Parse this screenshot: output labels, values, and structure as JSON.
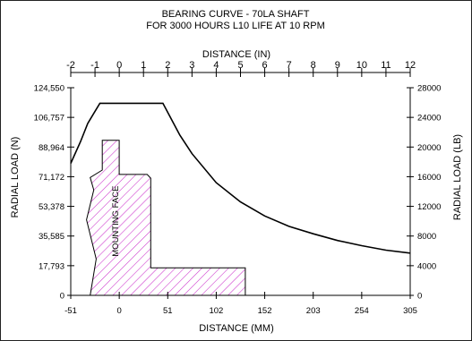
{
  "chart_data": {
    "type": "line",
    "title": [
      "BEARING CURVE - 70LA SHAFT",
      "FOR 3000 HOURS L10 LIFE AT 10 RPM"
    ],
    "top_xlabel": "DISTANCE (IN)",
    "bottom_xlabel": "DISTANCE (MM)",
    "left_ylabel": "RADIAL LOAD (N)",
    "right_ylabel": "RADIAL LOAD (LB)",
    "annotation": "MOUNTING FACE",
    "x_in_range": [
      -2,
      12
    ],
    "y_lb_range": [
      0,
      28000
    ],
    "top_ticks": [
      "-2",
      "-1",
      "0",
      "1",
      "2",
      "3",
      "4",
      "5",
      "6",
      "7",
      "8",
      "9",
      "10",
      "11",
      "12"
    ],
    "bottom_ticks": [
      {
        "x": -2,
        "label": "-51"
      },
      {
        "x": 0,
        "label": "0"
      },
      {
        "x": 2,
        "label": "51"
      },
      {
        "x": 4,
        "label": "102"
      },
      {
        "x": 6,
        "label": "152"
      },
      {
        "x": 8,
        "label": "203"
      },
      {
        "x": 10,
        "label": "254"
      },
      {
        "x": 12,
        "label": "305"
      }
    ],
    "left_ticks": [
      {
        "y": 0,
        "label": "0"
      },
      {
        "y": 4000,
        "label": "17,793"
      },
      {
        "y": 8000,
        "label": "35,585"
      },
      {
        "y": 12000,
        "label": "53,378"
      },
      {
        "y": 16000,
        "label": "71,172"
      },
      {
        "y": 20000,
        "label": "88,964"
      },
      {
        "y": 24000,
        "label": "106,757"
      },
      {
        "y": 28000,
        "label": "124,550"
      }
    ],
    "right_ticks": [
      {
        "y": 0,
        "label": "0"
      },
      {
        "y": 4000,
        "label": "4000"
      },
      {
        "y": 8000,
        "label": "8000"
      },
      {
        "y": 12000,
        "label": "12000"
      },
      {
        "y": 16000,
        "label": "16000"
      },
      {
        "y": 20000,
        "label": "20000"
      },
      {
        "y": 24000,
        "label": "24000"
      },
      {
        "y": 28000,
        "label": "28000"
      }
    ],
    "grid": false,
    "series": [
      {
        "values": [
          [
            -2,
            17800
          ],
          [
            -1.6,
            20700
          ],
          [
            -1.3,
            23200
          ],
          [
            -0.8,
            25900
          ],
          [
            1.8,
            25900
          ],
          [
            2.5,
            21600
          ],
          [
            3,
            19100
          ],
          [
            4,
            15200
          ],
          [
            5,
            12600
          ],
          [
            6,
            10700
          ],
          [
            7,
            9300
          ],
          [
            8,
            8300
          ],
          [
            9,
            7400
          ],
          [
            10,
            6700
          ],
          [
            11,
            6100
          ],
          [
            12,
            5700
          ]
        ]
      }
    ],
    "mounting_region": {
      "hatch_color": "#cc33cc",
      "outline": [
        [
          -1.2,
          0
        ],
        [
          -0.95,
          4900
        ],
        [
          -1.35,
          10200
        ],
        [
          -1.05,
          14200
        ],
        [
          -1.2,
          15900
        ],
        [
          -0.7,
          16900
        ],
        [
          -0.7,
          20900
        ],
        [
          0,
          20900
        ],
        [
          0,
          16300
        ],
        [
          1.15,
          16300
        ],
        [
          1.3,
          15800
        ],
        [
          1.3,
          3700
        ],
        [
          5.2,
          3700
        ],
        [
          5.2,
          0
        ]
      ]
    }
  }
}
